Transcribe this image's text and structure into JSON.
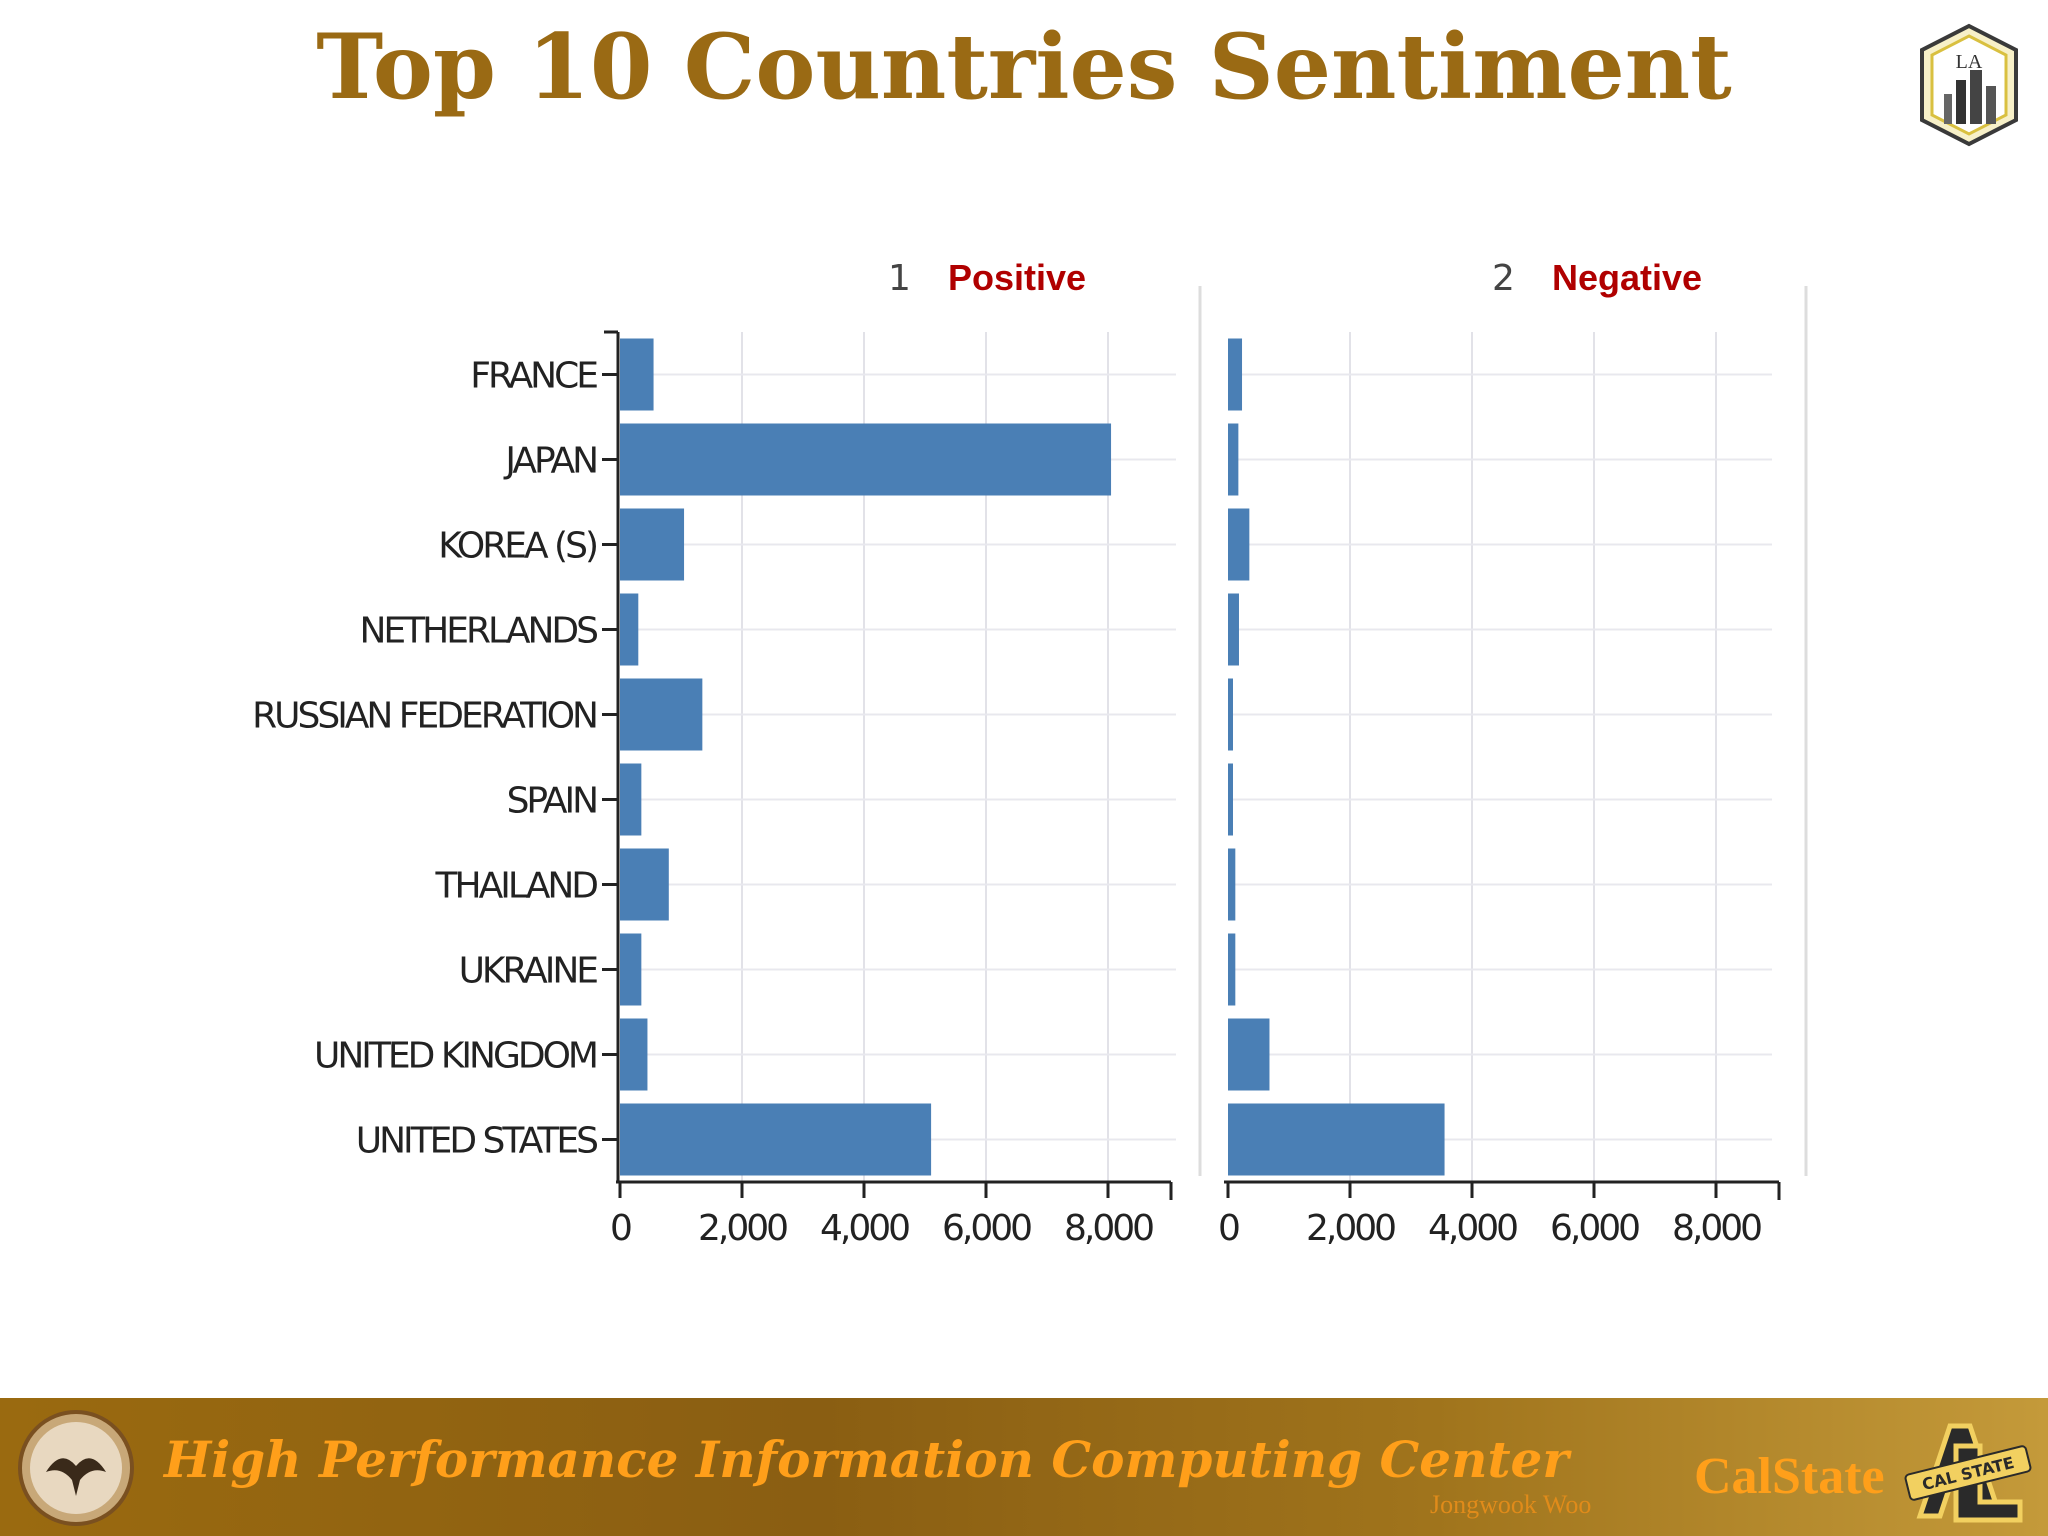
{
  "slide": {
    "title": "Top 10 Countries Sentiment"
  },
  "footer": {
    "center_name": "High Performance Information Computing Center",
    "author": "Jongwook Woo",
    "brand": "CalStateLA",
    "badge_text": "CAL STATE"
  },
  "logo_top": {
    "text": "LA"
  },
  "colors": {
    "bar": "#4a7fb5",
    "title": "#9a6a14",
    "facet_label": "#b00000",
    "footer_text": "#ff9f1a"
  },
  "chart_data": {
    "type": "bar",
    "orientation": "horizontal",
    "categories": [
      "FRANCE",
      "JAPAN",
      "KOREA (S)",
      "NETHERLANDS",
      "RUSSIAN FEDERATION",
      "SPAIN",
      "THAILAND",
      "UKRAINE",
      "UNITED KINGDOM",
      "UNITED STATES"
    ],
    "xlim": [
      0,
      9000
    ],
    "xticks": [
      0,
      2000,
      4000,
      6000,
      8000
    ],
    "xtick_labels": [
      "0",
      "2,000",
      "4,000",
      "6,000",
      "8,000"
    ],
    "grid": true,
    "panels": [
      {
        "index": "1",
        "name": "Positive",
        "values": [
          550,
          8050,
          1050,
          300,
          1350,
          350,
          800,
          350,
          450,
          5100
        ]
      },
      {
        "index": "2",
        "name": "Negative",
        "values": [
          230,
          170,
          350,
          180,
          70,
          70,
          120,
          120,
          680,
          3550
        ]
      }
    ]
  }
}
